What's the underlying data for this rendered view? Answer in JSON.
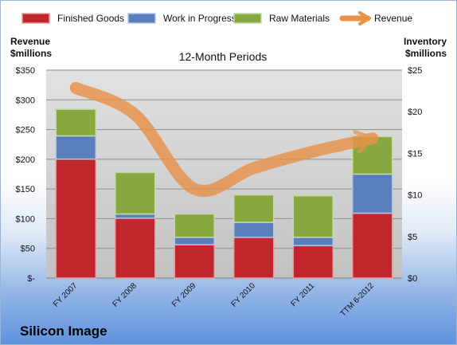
{
  "chart_data": {
    "type": "bar",
    "title": "12-Month Periods",
    "company": "Silicon Image",
    "categories": [
      "FY 2007",
      "FY 2008",
      "FY 2009",
      "FY 2010",
      "FY 2011",
      "TTM 6-2012"
    ],
    "left_axis": {
      "label_line1": "Revenue",
      "label_line2": "$millions",
      "range": [
        0,
        350
      ],
      "ticks": [
        0,
        50,
        100,
        150,
        200,
        250,
        300,
        350
      ],
      "tick_labels": [
        "$-",
        "$50",
        "$100",
        "$150",
        "$200",
        "$250",
        "$300",
        "$350"
      ]
    },
    "right_axis": {
      "label_line1": "Inventory",
      "label_line2": "$millions",
      "range": [
        0,
        25
      ],
      "ticks": [
        0,
        5,
        10,
        15,
        20,
        25
      ],
      "tick_labels": [
        "$0",
        "$5",
        "$10",
        "$15",
        "$20",
        "$25"
      ]
    },
    "grid": true,
    "legend_position": "top",
    "series": [
      {
        "name": "Finished Goods",
        "axis": "right",
        "color": "#c0262c",
        "values": [
          14.3,
          7.2,
          4.0,
          4.9,
          3.9,
          7.8
        ]
      },
      {
        "name": "Work in Progress",
        "axis": "right",
        "color": "#5b7fbd",
        "values": [
          2.8,
          0.5,
          0.9,
          1.8,
          1.0,
          4.7
        ]
      },
      {
        "name": "Raw Materials",
        "axis": "right",
        "color": "#86a83f",
        "values": [
          3.2,
          5.0,
          2.8,
          3.3,
          5.0,
          4.5
        ]
      },
      {
        "name": "Revenue",
        "axis": "left",
        "color": "#e8924a",
        "values": [
          320,
          275,
          150,
          185,
          213,
          235
        ]
      }
    ]
  }
}
